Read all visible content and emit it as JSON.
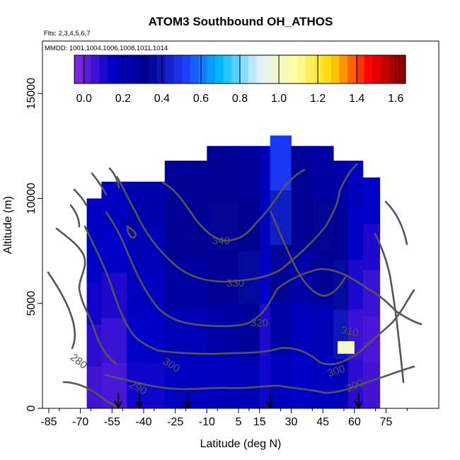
{
  "chart_data": {
    "type": "heatmap",
    "title": "ATOM3 Southbound OH_ATHOS",
    "subtitle_flights": "Flts: 2,3,4,5,6,7",
    "subtitle_dates": "MMDD: 1001,1004,1006,1008,1011,1014",
    "xlabel": "Latitude (deg N)",
    "ylabel": "Altitude (m)",
    "xlim": [
      -88,
      100
    ],
    "ylim": [
      0,
      17500
    ],
    "x_ticks": [
      -85,
      -70,
      -55,
      -40,
      -25,
      -10,
      5,
      15,
      30,
      45,
      60,
      75
    ],
    "x_ticks_labels": [
      "-85",
      "-70",
      "-55",
      "-40",
      "-25",
      "-10",
      "5",
      "15",
      "30",
      "45",
      "60",
      "75"
    ],
    "y_ticks": [
      0,
      5000,
      10000,
      15000
    ],
    "y_ticks_labels": [
      "0",
      "5000",
      "10000",
      "15000"
    ],
    "colorbar": {
      "min": -0.05,
      "max": 1.65,
      "ticks": [
        0.0,
        0.2,
        0.4,
        0.6,
        0.8,
        1.0,
        1.2,
        1.4,
        1.6
      ],
      "tick_labels": [
        "0.0",
        "0.2",
        "0.4",
        "0.6",
        "0.8",
        "1.0",
        "1.2",
        "1.4",
        "1.6"
      ],
      "colors": [
        "#8a2be2",
        "#0000c8",
        "#00008b",
        "#1e3cff",
        "#00bfff",
        "#e0f0ff",
        "#ffffa0",
        "#ffd700",
        "#ff0000",
        "#800000"
      ]
    },
    "potential_temperature_contours": [
      {
        "label": "280"
      },
      {
        "label": "290"
      },
      {
        "label": "290"
      },
      {
        "label": "300"
      },
      {
        "label": "300"
      },
      {
        "label": "310"
      },
      {
        "label": "320"
      },
      {
        "label": "330"
      },
      {
        "label": "340"
      }
    ],
    "profile_markers_latitude": [
      -52,
      -42,
      -19,
      20,
      62
    ],
    "field_columns": [
      {
        "x0": -67,
        "x1": -60,
        "top": 10000,
        "vals": [
          0.05,
          0.08,
          0.12,
          0.15,
          0.16
        ]
      },
      {
        "x0": -60,
        "x1": -48,
        "top": 10800,
        "vals": [
          0.04,
          0.06,
          0.1,
          0.14,
          0.17
        ]
      },
      {
        "x0": -48,
        "x1": -30,
        "top": 10800,
        "vals": [
          0.12,
          0.14,
          0.17,
          0.2,
          0.23
        ]
      },
      {
        "x0": -30,
        "x1": -10,
        "top": 11800,
        "vals": [
          0.16,
          0.2,
          0.26,
          0.3,
          0.3
        ]
      },
      {
        "x0": -10,
        "x1": 5,
        "top": 12500,
        "vals": [
          0.18,
          0.24,
          0.3,
          0.34,
          0.3
        ]
      },
      {
        "x0": 5,
        "x1": 15,
        "top": 12500,
        "vals": [
          0.2,
          0.28,
          0.36,
          0.32,
          0.28
        ]
      },
      {
        "x0": 15,
        "x1": 20,
        "top": 12500,
        "vals": [
          0.12,
          0.1,
          0.14,
          0.16,
          0.18
        ]
      },
      {
        "x0": 20,
        "x1": 30,
        "top": 13000,
        "vals": [
          0.18,
          0.24,
          0.34,
          0.42,
          0.5
        ]
      },
      {
        "x0": 30,
        "x1": 40,
        "top": 12500,
        "vals": [
          0.14,
          0.18,
          0.24,
          0.3,
          0.3
        ]
      },
      {
        "x0": 40,
        "x1": 50,
        "top": 12500,
        "vals": [
          0.16,
          0.2,
          0.3,
          0.34,
          0.26
        ]
      },
      {
        "x0": 50,
        "x1": 57,
        "top": 11800,
        "vals": [
          0.2,
          0.4,
          0.36,
          0.3,
          0.24
        ]
      },
      {
        "x0": 57,
        "x1": 64,
        "top": 11800,
        "vals": [
          0.08,
          0.06,
          0.1,
          0.14,
          0.18
        ]
      },
      {
        "x0": 64,
        "x1": 72,
        "top": 11000,
        "vals": [
          0.05,
          0.04,
          0.06,
          0.1,
          0.14
        ]
      }
    ],
    "hotspot": {
      "x0": 52,
      "x1": 60,
      "y0": 2600,
      "y1": 3200,
      "value": 1.0
    }
  }
}
